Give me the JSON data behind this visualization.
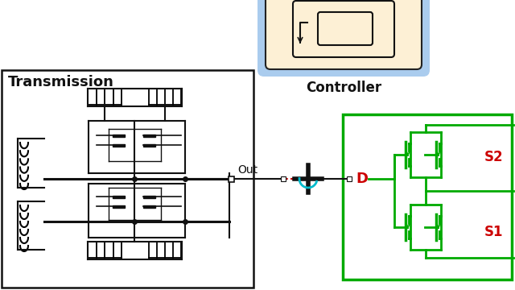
{
  "bg_color": "#ffffff",
  "transmission_label": "Transmission",
  "controller_label": "Controller",
  "out_label": "Out",
  "D_label": "D",
  "S2_label": "S2",
  "S1_label": "S1",
  "controller_box_color": "#aaccee",
  "controller_fill": "#fdf0d5",
  "green_color": "#00aa00",
  "red_color": "#cc0000",
  "black": "#111111",
  "dashed_red": "#cc0000",
  "cyan_color": "#00bbcc"
}
